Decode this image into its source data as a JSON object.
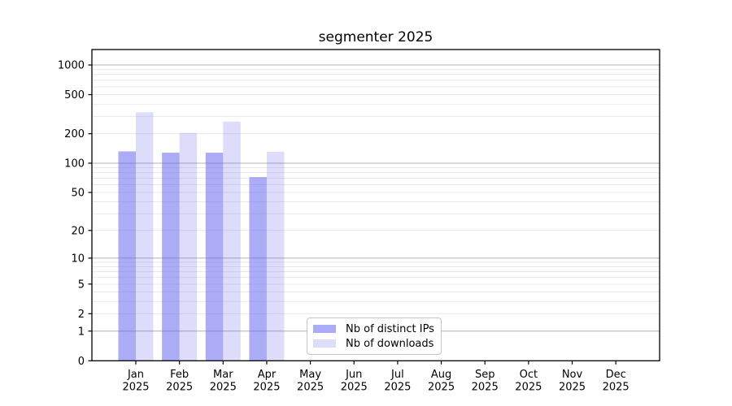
{
  "chart_data": {
    "type": "bar",
    "title": "segmenter 2025",
    "categories": [
      "Jan",
      "Feb",
      "Mar",
      "Apr",
      "May",
      "Jun",
      "Jul",
      "Aug",
      "Sep",
      "Oct",
      "Nov",
      "Dec"
    ],
    "x_tick_year_line": "2025",
    "series": [
      {
        "name": "Nb of distinct IPs",
        "color": "#6666ee",
        "opacity": 0.55,
        "values": [
          132,
          128,
          128,
          72,
          null,
          null,
          null,
          null,
          null,
          null,
          null,
          null
        ]
      },
      {
        "name": "Nb of downloads",
        "color": "#6666ee",
        "opacity": 0.22,
        "values": [
          330,
          204,
          266,
          131,
          null,
          null,
          null,
          null,
          null,
          null,
          null,
          null
        ]
      }
    ],
    "xlabel": "",
    "ylabel": "",
    "yscale": "log10(value+1)",
    "ylim": [
      0,
      1435
    ],
    "y_ticks": [
      0,
      1,
      2,
      5,
      10,
      20,
      50,
      100,
      200,
      500,
      1000
    ],
    "y_major_gridlines": [
      1,
      10,
      100,
      1000
    ],
    "y_minor_gridlines": [
      3,
      4,
      6,
      7,
      8,
      9,
      30,
      40,
      60,
      70,
      80,
      90,
      300,
      400,
      600,
      700,
      800,
      900
    ],
    "grid": true,
    "legend_position": "lower center inside plot",
    "colors": {
      "major_grid": "#b0b0b0",
      "minor_grid": "#e9e9e9",
      "light_grid": "#e9e9e9",
      "axis": "#000000"
    }
  }
}
